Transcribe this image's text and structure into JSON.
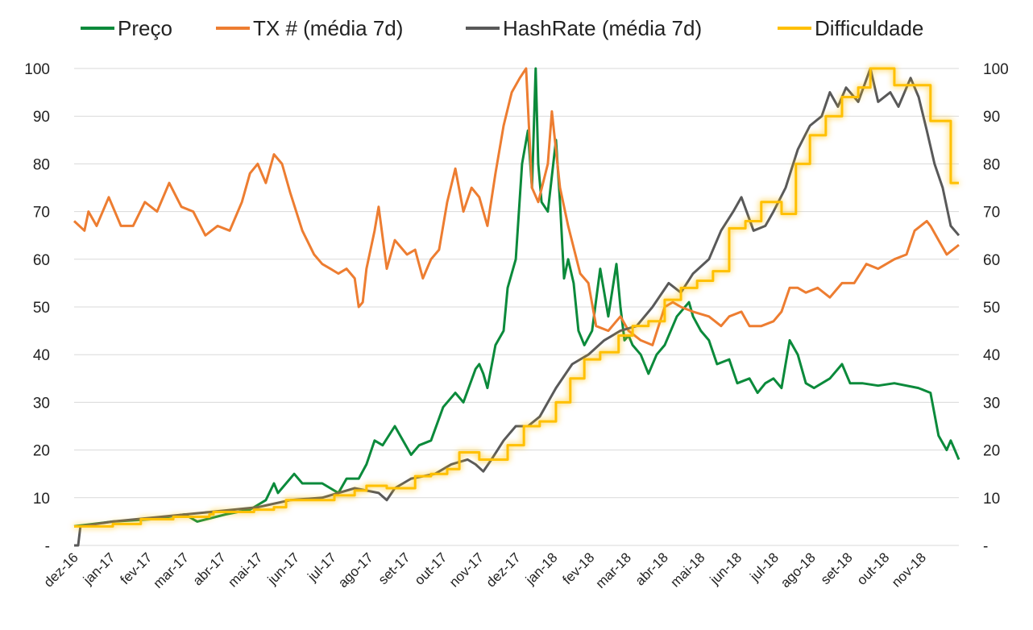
{
  "chart_data": {
    "type": "line",
    "title": "",
    "xlabel": "",
    "ylabel": "",
    "ylim": [
      0,
      100
    ],
    "y_ticks": [
      "-",
      "10",
      "20",
      "30",
      "40",
      "50",
      "60",
      "70",
      "80",
      "90",
      "100"
    ],
    "x_unit": "months since start of dez-16",
    "xlim": [
      0,
      24
    ],
    "x_tick_labels": [
      "dez-16",
      "jan-17",
      "fev-17",
      "mar-17",
      "abr-17",
      "mai-17",
      "jun-17",
      "jul-17",
      "ago-17",
      "set-17",
      "out-17",
      "nov-17",
      "dez-17",
      "jan-18",
      "fev-18",
      "mar-18",
      "abr-18",
      "mai-18",
      "jun-18",
      "jul-18",
      "ago-18",
      "set-18",
      "out-18",
      "nov-18"
    ],
    "grid": true,
    "legend_position": "top",
    "series": [
      {
        "name": "Preço",
        "color": "#0b8a3b",
        "style": "line",
        "points": [
          [
            0,
            4
          ],
          [
            1.05,
            5
          ],
          [
            2.14,
            5.5
          ],
          [
            3.0,
            6.5
          ],
          [
            3.34,
            5
          ],
          [
            4.11,
            6.5
          ],
          [
            4.77,
            7.5
          ],
          [
            5.2,
            9.5
          ],
          [
            5.42,
            13
          ],
          [
            5.53,
            11
          ],
          [
            5.97,
            15
          ],
          [
            6.19,
            13
          ],
          [
            6.73,
            13
          ],
          [
            7.17,
            11
          ],
          [
            7.39,
            14
          ],
          [
            7.72,
            14
          ],
          [
            7.93,
            17
          ],
          [
            8.15,
            22
          ],
          [
            8.37,
            21
          ],
          [
            8.7,
            25
          ],
          [
            8.92,
            22
          ],
          [
            9.14,
            19
          ],
          [
            9.36,
            21
          ],
          [
            9.68,
            22
          ],
          [
            10.01,
            29
          ],
          [
            10.34,
            32
          ],
          [
            10.56,
            30
          ],
          [
            10.89,
            37
          ],
          [
            10.99,
            38
          ],
          [
            11.1,
            36
          ],
          [
            11.21,
            33
          ],
          [
            11.43,
            42
          ],
          [
            11.65,
            45
          ],
          [
            11.76,
            54
          ],
          [
            11.98,
            60
          ],
          [
            12.15,
            80
          ],
          [
            12.31,
            87
          ],
          [
            12.42,
            75
          ],
          [
            12.52,
            100
          ],
          [
            12.59,
            80
          ],
          [
            12.68,
            72
          ],
          [
            12.85,
            70
          ],
          [
            13.07,
            85
          ],
          [
            13.18,
            72
          ],
          [
            13.29,
            56
          ],
          [
            13.4,
            60
          ],
          [
            13.55,
            55
          ],
          [
            13.68,
            45
          ],
          [
            13.84,
            42
          ],
          [
            14.05,
            45
          ],
          [
            14.27,
            58
          ],
          [
            14.49,
            48
          ],
          [
            14.71,
            59
          ],
          [
            14.82,
            50
          ],
          [
            14.93,
            43
          ],
          [
            15.04,
            44
          ],
          [
            15.15,
            42
          ],
          [
            15.37,
            40
          ],
          [
            15.58,
            36
          ],
          [
            15.8,
            40
          ],
          [
            16.02,
            42
          ],
          [
            16.35,
            48
          ],
          [
            16.68,
            51
          ],
          [
            16.79,
            48
          ],
          [
            17.0,
            45
          ],
          [
            17.22,
            43
          ],
          [
            17.44,
            38
          ],
          [
            17.77,
            39
          ],
          [
            17.99,
            34
          ],
          [
            18.32,
            35
          ],
          [
            18.54,
            32
          ],
          [
            18.75,
            34
          ],
          [
            18.97,
            35
          ],
          [
            19.19,
            33
          ],
          [
            19.41,
            43
          ],
          [
            19.63,
            40
          ],
          [
            19.85,
            34
          ],
          [
            20.07,
            33
          ],
          [
            20.5,
            35
          ],
          [
            20.83,
            38
          ],
          [
            21.05,
            34
          ],
          [
            21.38,
            34
          ],
          [
            21.81,
            33.5
          ],
          [
            22.25,
            34
          ],
          [
            22.9,
            33
          ],
          [
            23.23,
            32
          ],
          [
            23.45,
            23
          ],
          [
            23.67,
            20
          ],
          [
            23.78,
            22
          ],
          [
            23.89,
            20
          ],
          [
            24,
            18
          ]
        ]
      },
      {
        "name": "TX # (média 7d)",
        "color": "#ed7d31",
        "style": "line",
        "points": [
          [
            0,
            68
          ],
          [
            0.28,
            66
          ],
          [
            0.39,
            70
          ],
          [
            0.61,
            67
          ],
          [
            0.94,
            73
          ],
          [
            1.27,
            67
          ],
          [
            1.6,
            67
          ],
          [
            1.92,
            72
          ],
          [
            2.25,
            70
          ],
          [
            2.58,
            76
          ],
          [
            2.91,
            71
          ],
          [
            3.23,
            70
          ],
          [
            3.56,
            65
          ],
          [
            3.89,
            67
          ],
          [
            4.22,
            66
          ],
          [
            4.55,
            72
          ],
          [
            4.77,
            78
          ],
          [
            4.98,
            80
          ],
          [
            5.2,
            76
          ],
          [
            5.42,
            82
          ],
          [
            5.64,
            80
          ],
          [
            5.86,
            74
          ],
          [
            6.19,
            66
          ],
          [
            6.51,
            61
          ],
          [
            6.73,
            59
          ],
          [
            6.95,
            58
          ],
          [
            7.17,
            57
          ],
          [
            7.39,
            58
          ],
          [
            7.61,
            56
          ],
          [
            7.72,
            50
          ],
          [
            7.83,
            51
          ],
          [
            7.93,
            58
          ],
          [
            8.15,
            66
          ],
          [
            8.26,
            71
          ],
          [
            8.48,
            58
          ],
          [
            8.7,
            64
          ],
          [
            9.03,
            61
          ],
          [
            9.25,
            62
          ],
          [
            9.46,
            56
          ],
          [
            9.68,
            60
          ],
          [
            9.9,
            62
          ],
          [
            10.12,
            72
          ],
          [
            10.34,
            79
          ],
          [
            10.56,
            70
          ],
          [
            10.78,
            75
          ],
          [
            10.99,
            73
          ],
          [
            11.21,
            67
          ],
          [
            11.43,
            78
          ],
          [
            11.65,
            88
          ],
          [
            11.87,
            95
          ],
          [
            12.09,
            98
          ],
          [
            12.26,
            100
          ],
          [
            12.42,
            75
          ],
          [
            12.59,
            72
          ],
          [
            12.85,
            80
          ],
          [
            12.96,
            91
          ],
          [
            13.18,
            75
          ],
          [
            13.4,
            67
          ],
          [
            13.73,
            57
          ],
          [
            13.95,
            55
          ],
          [
            14.16,
            46
          ],
          [
            14.49,
            45
          ],
          [
            14.82,
            48
          ],
          [
            15.04,
            45
          ],
          [
            15.37,
            43
          ],
          [
            15.69,
            42
          ],
          [
            16.02,
            50
          ],
          [
            16.24,
            51
          ],
          [
            16.46,
            50
          ],
          [
            16.79,
            49
          ],
          [
            17.22,
            48
          ],
          [
            17.55,
            46
          ],
          [
            17.77,
            48
          ],
          [
            18.1,
            49
          ],
          [
            18.32,
            46
          ],
          [
            18.64,
            46
          ],
          [
            18.97,
            47
          ],
          [
            19.19,
            49
          ],
          [
            19.41,
            54
          ],
          [
            19.63,
            54
          ],
          [
            19.85,
            53
          ],
          [
            20.17,
            54
          ],
          [
            20.5,
            52
          ],
          [
            20.83,
            55
          ],
          [
            21.16,
            55
          ],
          [
            21.49,
            59
          ],
          [
            21.81,
            58
          ],
          [
            22.25,
            60
          ],
          [
            22.58,
            61
          ],
          [
            22.8,
            66
          ],
          [
            23.13,
            68
          ],
          [
            23.23,
            67
          ],
          [
            23.45,
            64
          ],
          [
            23.67,
            61
          ],
          [
            24,
            63
          ]
        ]
      },
      {
        "name": "HashRate (média 7d)",
        "color": "#595959",
        "style": "line",
        "points": [
          [
            0,
            0
          ],
          [
            0.11,
            0
          ],
          [
            0.17,
            4
          ],
          [
            1.05,
            5
          ],
          [
            2.36,
            6
          ],
          [
            3.67,
            7
          ],
          [
            4.98,
            8
          ],
          [
            5.86,
            9.5
          ],
          [
            6.73,
            10
          ],
          [
            7.61,
            12
          ],
          [
            8.26,
            11
          ],
          [
            8.48,
            9.5
          ],
          [
            8.7,
            12
          ],
          [
            9.14,
            14
          ],
          [
            9.79,
            15
          ],
          [
            10.23,
            17
          ],
          [
            10.67,
            18
          ],
          [
            10.89,
            17
          ],
          [
            11.1,
            15.5
          ],
          [
            11.32,
            18
          ],
          [
            11.65,
            22
          ],
          [
            11.98,
            25
          ],
          [
            12.31,
            25
          ],
          [
            12.63,
            27
          ],
          [
            13.07,
            33
          ],
          [
            13.51,
            38
          ],
          [
            13.95,
            40
          ],
          [
            14.38,
            43
          ],
          [
            14.82,
            45
          ],
          [
            15.26,
            46
          ],
          [
            15.69,
            50
          ],
          [
            16.13,
            55
          ],
          [
            16.46,
            53
          ],
          [
            16.79,
            57
          ],
          [
            17.22,
            60
          ],
          [
            17.55,
            66
          ],
          [
            17.88,
            70
          ],
          [
            18.1,
            73
          ],
          [
            18.43,
            66
          ],
          [
            18.75,
            67
          ],
          [
            18.97,
            70
          ],
          [
            19.3,
            75
          ],
          [
            19.63,
            83
          ],
          [
            19.96,
            88
          ],
          [
            20.28,
            90
          ],
          [
            20.5,
            95
          ],
          [
            20.72,
            92
          ],
          [
            20.94,
            96
          ],
          [
            21.27,
            93
          ],
          [
            21.6,
            100
          ],
          [
            21.81,
            93
          ],
          [
            22.14,
            95
          ],
          [
            22.36,
            92
          ],
          [
            22.69,
            98
          ],
          [
            22.91,
            94
          ],
          [
            23.13,
            87
          ],
          [
            23.34,
            80
          ],
          [
            23.56,
            75
          ],
          [
            23.78,
            67
          ],
          [
            24,
            65
          ]
        ]
      },
      {
        "name": "Difficuldade",
        "color": "#ffc000",
        "style": "step",
        "points": [
          [
            0,
            4
          ],
          [
            1.05,
            4.5
          ],
          [
            1.81,
            5.5
          ],
          [
            2.69,
            6
          ],
          [
            3.67,
            6.5
          ],
          [
            3.78,
            7
          ],
          [
            4.88,
            7.5
          ],
          [
            5.42,
            8
          ],
          [
            5.75,
            9.5
          ],
          [
            7.06,
            10.5
          ],
          [
            7.61,
            11.5
          ],
          [
            7.93,
            12.5
          ],
          [
            8.48,
            12
          ],
          [
            9.25,
            14.5
          ],
          [
            9.68,
            15
          ],
          [
            10.12,
            16
          ],
          [
            10.45,
            19.5
          ],
          [
            10.99,
            18
          ],
          [
            11.76,
            21
          ],
          [
            12.2,
            25
          ],
          [
            12.63,
            26
          ],
          [
            13.07,
            30
          ],
          [
            13.46,
            35
          ],
          [
            13.84,
            39
          ],
          [
            14.27,
            40.5
          ],
          [
            14.77,
            44
          ],
          [
            15.15,
            46
          ],
          [
            15.58,
            47
          ],
          [
            16.02,
            51.5
          ],
          [
            16.46,
            54
          ],
          [
            16.9,
            55.5
          ],
          [
            17.33,
            57.5
          ],
          [
            17.77,
            66.5
          ],
          [
            18.21,
            68
          ],
          [
            18.64,
            72
          ],
          [
            19.19,
            69.5
          ],
          [
            19.58,
            80
          ],
          [
            19.96,
            86
          ],
          [
            20.39,
            90
          ],
          [
            20.83,
            94
          ],
          [
            21.27,
            96
          ],
          [
            21.6,
            100
          ],
          [
            22.25,
            96.5
          ],
          [
            23.23,
            89
          ],
          [
            23.78,
            76
          ],
          [
            24,
            76
          ]
        ]
      }
    ]
  }
}
